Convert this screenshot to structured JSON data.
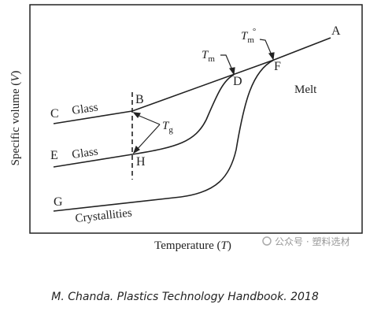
{
  "diagram": {
    "points": {
      "A": "A",
      "B": "B",
      "C": "C",
      "D": "D",
      "E": "E",
      "F": "F",
      "G": "G",
      "H": "H"
    },
    "regions": {
      "glass_upper": "Glass",
      "glass_lower": "Glass",
      "crystallities": "Crystallities",
      "melt": "Melt"
    },
    "tg": {
      "symbol": "T",
      "subscript": "g"
    },
    "tm": {
      "symbol": "T",
      "subscript": "m"
    },
    "tm0": {
      "symbol": "T",
      "subscript": "m",
      "superscript": "°"
    },
    "y_axis_label": {
      "before": "Specific volume (",
      "symbol": "V",
      "after": ")"
    },
    "x_axis_label": {
      "before": "Temperature (",
      "symbol": "T",
      "after": ")"
    },
    "watermark": "公众号 · 塑料选材",
    "caption": "M. Chanda. Plastics Technology Handbook. 2018"
  }
}
